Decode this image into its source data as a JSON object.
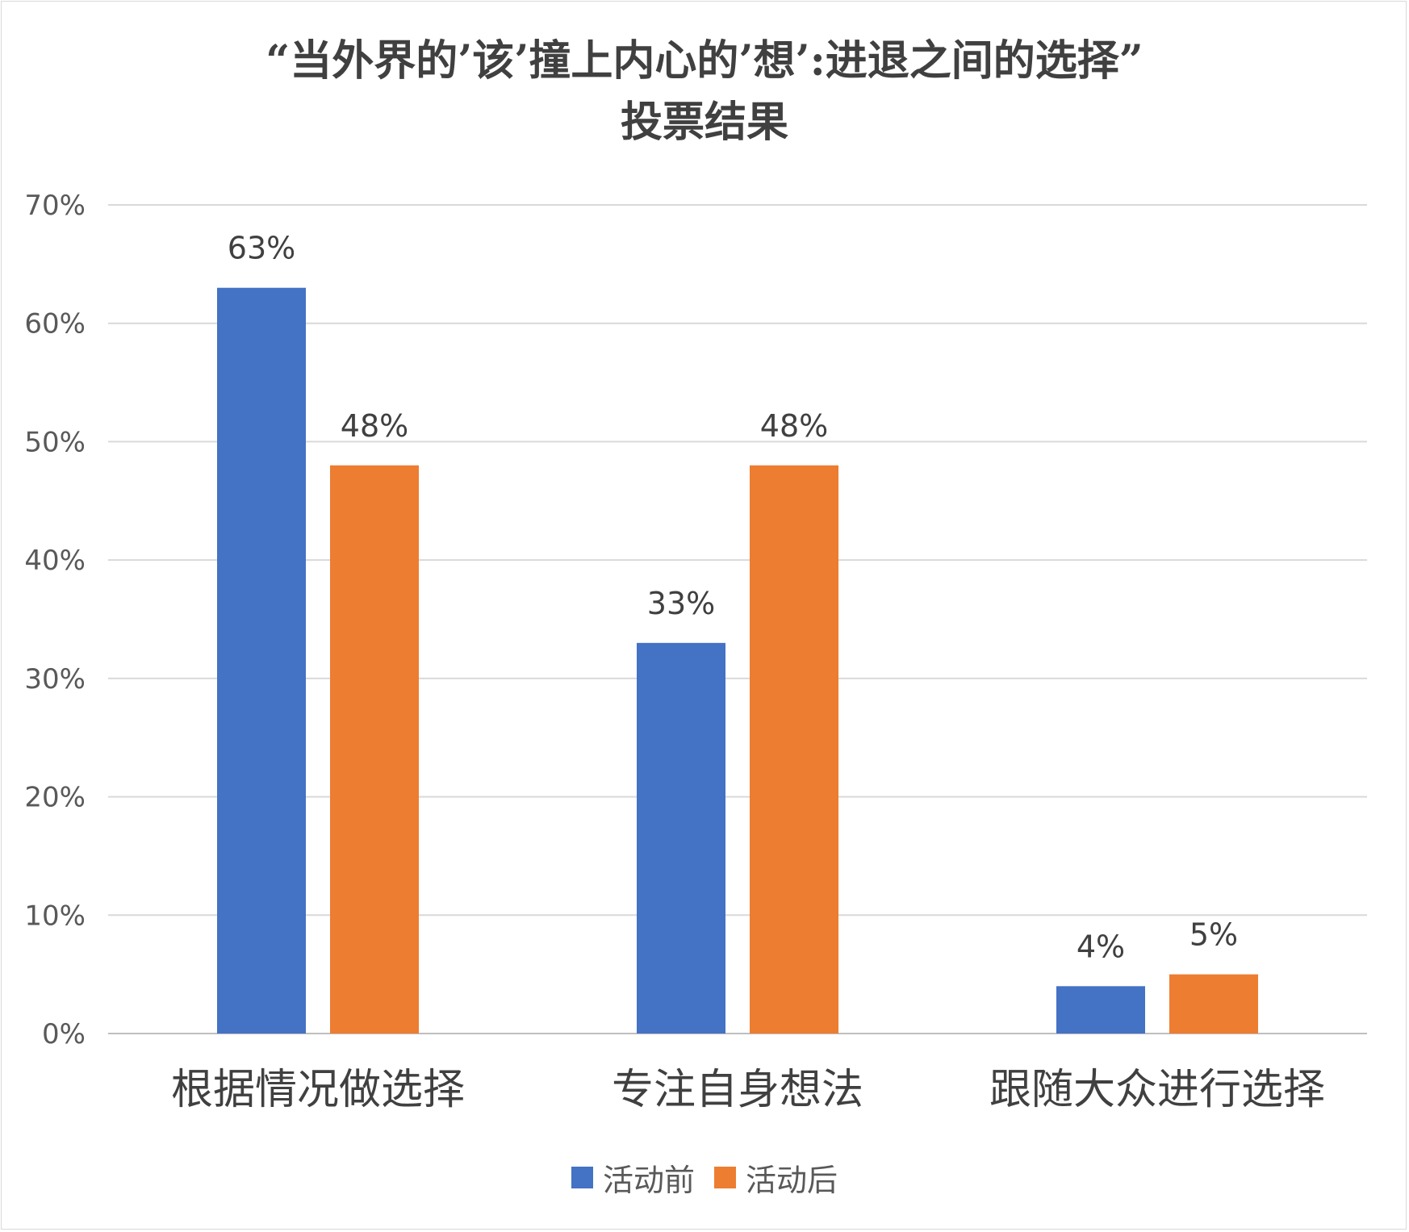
{
  "chart_data": {
    "type": "bar",
    "title": "“当外界的’该’撞上内心的’想’:进退之间的选择”",
    "subtitle": "投票结果",
    "categories": [
      "根据情况做选择",
      "专注自身想法",
      "跟随大众进行选择"
    ],
    "series": [
      {
        "name": "活动前",
        "values": [
          63,
          33,
          4
        ],
        "labels": [
          "63%",
          "33%",
          "4%"
        ],
        "color": "#4472C4"
      },
      {
        "name": "活动后",
        "values": [
          48,
          48,
          5
        ],
        "labels": [
          "48%",
          "48%",
          "5%"
        ],
        "color": "#ED7D31"
      }
    ],
    "ylim": [
      0,
      70
    ],
    "yticks": [
      0,
      10,
      20,
      30,
      40,
      50,
      60,
      70
    ],
    "ytick_labels": [
      "0%",
      "10%",
      "20%",
      "30%",
      "40%",
      "50%",
      "60%",
      "70%"
    ],
    "grid": true,
    "legend": "bottom"
  }
}
